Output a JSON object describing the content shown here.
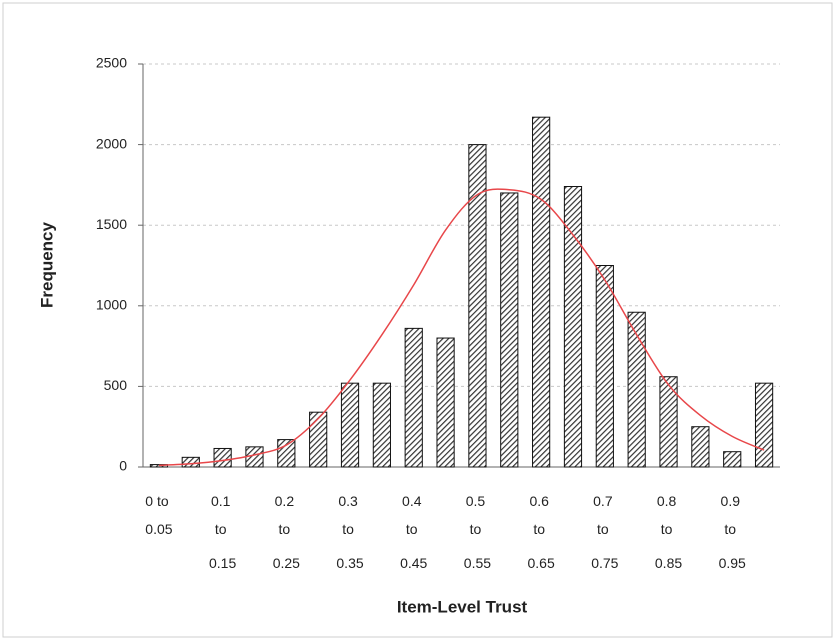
{
  "chart_data": {
    "type": "bar",
    "x_label": "Item-Level Trust",
    "y_label": "Frequency",
    "categories": [
      "0 to 0.05",
      null,
      "0.1 to 0.15",
      null,
      "0.2 to 0.25",
      null,
      "0.3 to 0.35",
      null,
      "0.4 to 0.45",
      null,
      "0.5 to 0.55",
      null,
      "0.6 to 0.65",
      null,
      "0.7 to 0.75",
      null,
      "0.8 to 0.85",
      null,
      "0.9 to 0.95",
      null
    ],
    "series": [
      {
        "type": "bar",
        "color": "#333333",
        "values": [
          15,
          60,
          115,
          125,
          170,
          340,
          520,
          520,
          860,
          800,
          2000,
          1700,
          2170,
          1740,
          1250,
          960,
          560,
          250,
          95,
          520
        ]
      },
      {
        "type": "line",
        "color": "#e8474a",
        "values": [
          10,
          20,
          40,
          75,
          136,
          300,
          540,
          820,
          1130,
          1470,
          1690,
          1720,
          1660,
          1440,
          1160,
          820,
          510,
          320,
          190,
          105
        ]
      }
    ],
    "ylim": [
      0,
      2500
    ],
    "yticks": [
      0,
      500,
      1000,
      1500,
      2000,
      2500
    ],
    "grid": true
  }
}
